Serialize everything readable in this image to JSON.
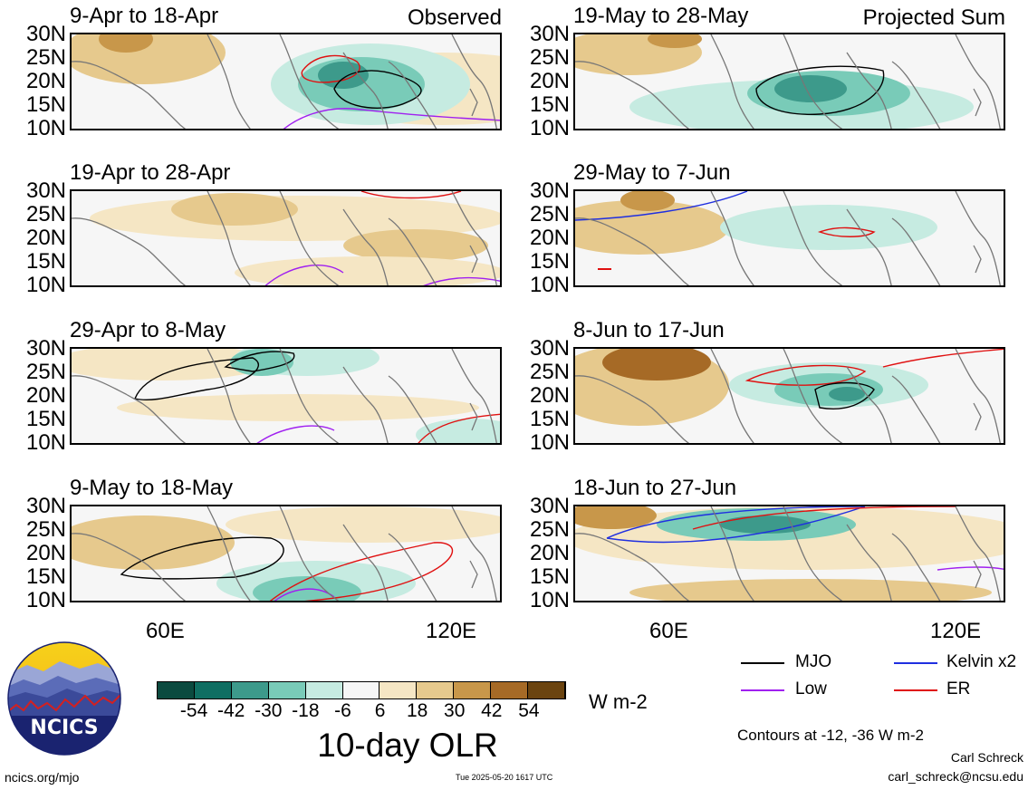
{
  "panels": [
    {
      "title": "9-Apr to 18-Apr",
      "tag": "Observed",
      "col": 0,
      "row": 0
    },
    {
      "title": "19-Apr to 28-Apr",
      "tag": "",
      "col": 0,
      "row": 1
    },
    {
      "title": "29-Apr to 8-May",
      "tag": "",
      "col": 0,
      "row": 2
    },
    {
      "title": "9-May to 18-May",
      "tag": "",
      "col": 0,
      "row": 3
    },
    {
      "title": "19-May to 28-May",
      "tag": "Projected Sum",
      "col": 1,
      "row": 0
    },
    {
      "title": "29-May to 7-Jun",
      "tag": "",
      "col": 1,
      "row": 1
    },
    {
      "title": "8-Jun to 17-Jun",
      "tag": "",
      "col": 1,
      "row": 2
    },
    {
      "title": "18-Jun to 27-Jun",
      "tag": "",
      "col": 1,
      "row": 3
    }
  ],
  "lat_labels": [
    "30N",
    "25N",
    "20N",
    "15N",
    "10N"
  ],
  "lon_labels": [
    "60E",
    "120E"
  ],
  "colorbar": {
    "colors": [
      "#0b4a3f",
      "#0f6e62",
      "#3d9a8b",
      "#79cbb8",
      "#c6ebe1",
      "#f6f6f6",
      "#f5e6c4",
      "#e6c98d",
      "#c8974a",
      "#a66a26",
      "#6b4410"
    ],
    "tick_labels": [
      "-54",
      "-42",
      "-30",
      "-18",
      "-6",
      "6",
      "18",
      "30",
      "42",
      "54"
    ],
    "units": "W m-2",
    "title": "10-day OLR"
  },
  "legend": [
    {
      "name": "MJO",
      "color": "#000000"
    },
    {
      "name": "Kelvin x2",
      "color": "#1f2fe0"
    },
    {
      "name": "Low",
      "color": "#a020f0"
    },
    {
      "name": "ER",
      "color": "#e01010"
    }
  ],
  "contours_note": "Contours at -12, -36 W m-2",
  "author": "Carl Schreck",
  "email": "carl_schreck@ncsu.edu",
  "site": "ncics.org/mjo",
  "timestamp": "Tue 2025-05-20 1617 UTC",
  "logo_text": "NCICS"
}
